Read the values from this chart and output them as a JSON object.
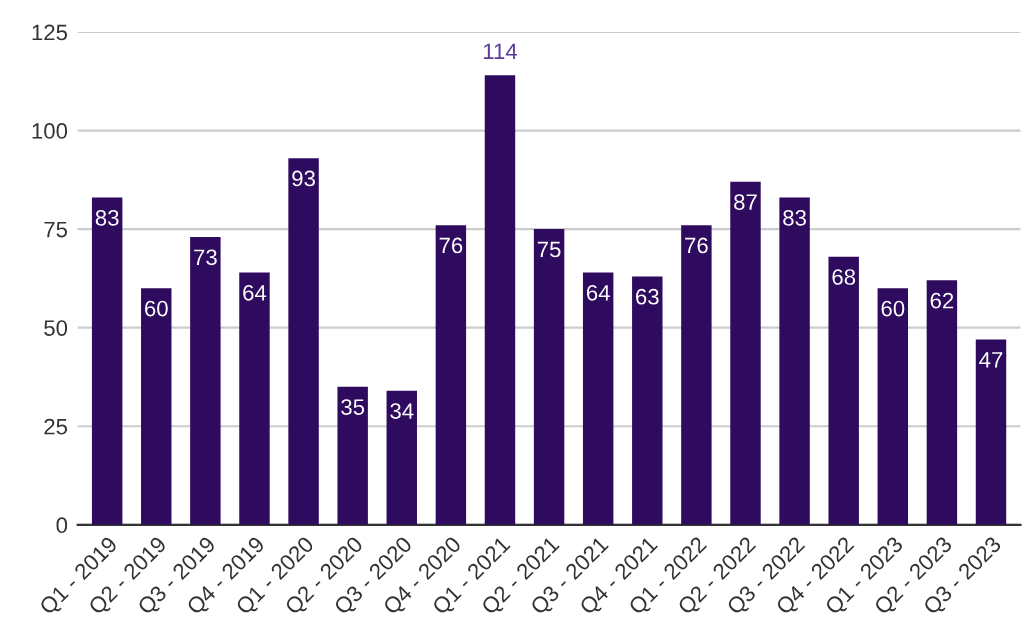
{
  "chart_data": {
    "type": "bar",
    "categories": [
      "Q1 - 2019",
      "Q2 - 2019",
      "Q3 - 2019",
      "Q4 - 2019",
      "Q1 - 2020",
      "Q2 - 2020",
      "Q3 - 2020",
      "Q4 - 2020",
      "Q1 - 2021",
      "Q2 - 2021",
      "Q3 - 2021",
      "Q4 - 2021",
      "Q1 - 2022",
      "Q2 - 2022",
      "Q3 - 2022",
      "Q4 - 2022",
      "Q1 - 2023",
      "Q2 - 2023",
      "Q3 - 2023"
    ],
    "values": [
      83,
      60,
      73,
      64,
      93,
      35,
      34,
      76,
      114,
      75,
      64,
      63,
      76,
      87,
      83,
      68,
      60,
      62,
      47
    ],
    "color": "#2e0b5e",
    "ylim": [
      0,
      125
    ],
    "yticks": [
      0,
      25,
      50,
      75,
      100,
      125
    ],
    "grid": "y",
    "data_labels": true
  }
}
